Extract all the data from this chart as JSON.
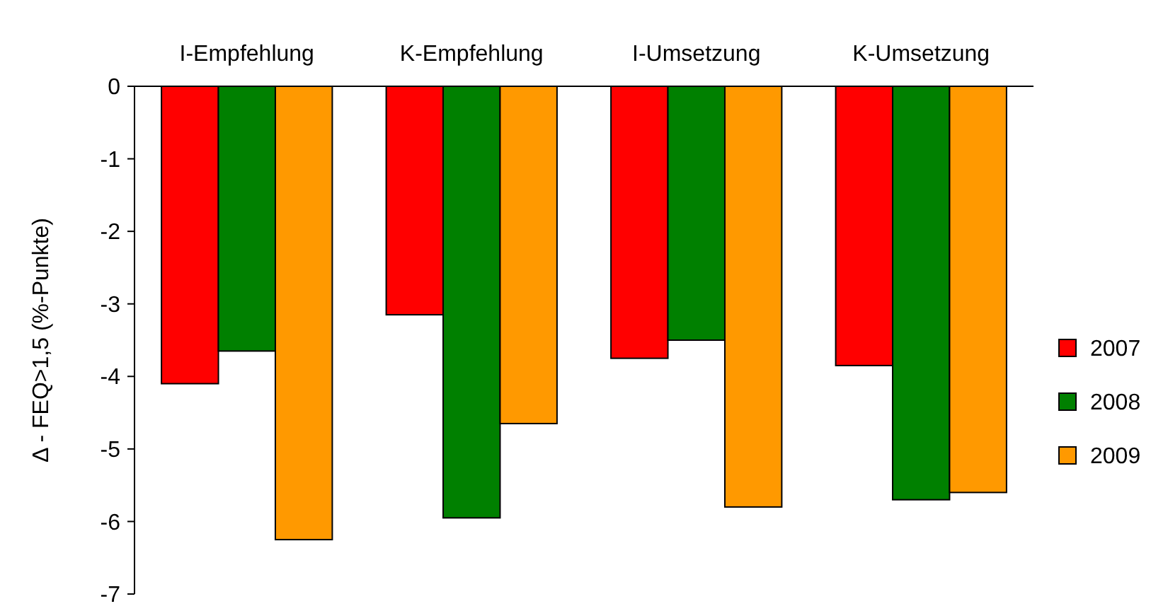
{
  "chart_data": {
    "type": "bar",
    "ylabel": "Δ - FEQ>1,5 (%-Punkte)",
    "categories": [
      "I-Empfehlung",
      "K-Empfehlung",
      "I-Umsetzung",
      "K-Umsetzung"
    ],
    "series": [
      {
        "name": "2007",
        "color": "#ff0000",
        "values": [
          -4.1,
          -3.15,
          -3.75,
          -3.85
        ]
      },
      {
        "name": "2008",
        "color": "#008000",
        "values": [
          -3.65,
          -5.95,
          -3.5,
          -5.7
        ]
      },
      {
        "name": "2009",
        "color": "#ff9900",
        "values": [
          -6.25,
          -4.65,
          -5.8,
          -5.6
        ]
      }
    ],
    "ylim": [
      -7,
      0
    ],
    "yticks": [
      -7,
      -6,
      -5,
      -4,
      -3,
      -2,
      -1,
      0
    ],
    "grid": false,
    "legend": "right"
  }
}
